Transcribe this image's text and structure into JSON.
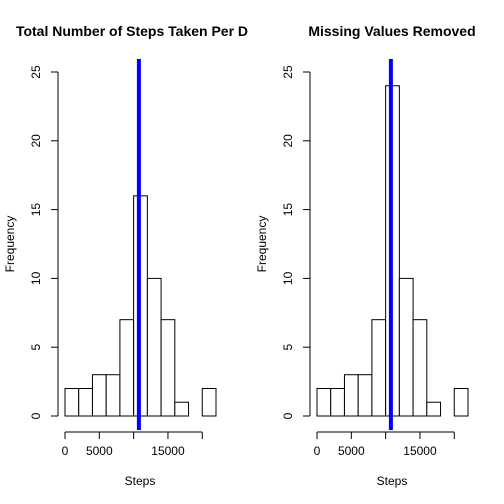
{
  "chart_data": [
    {
      "type": "bar",
      "title": "Total Number of Steps Taken Per D",
      "xlabel": "Steps",
      "ylabel": "Frequency",
      "bin_edges": [
        0,
        2000,
        4000,
        6000,
        8000,
        10000,
        12000,
        14000,
        16000,
        18000,
        20000,
        22000
      ],
      "values": [
        2,
        2,
        3,
        3,
        7,
        16,
        10,
        7,
        1,
        0,
        2
      ],
      "xlim": [
        0,
        22000
      ],
      "ylim": [
        0,
        25
      ],
      "x_ticks": [
        0,
        5000,
        15000
      ],
      "x_tick_marks": [
        0,
        5000,
        10000,
        15000,
        20000
      ],
      "y_ticks": [
        0,
        5,
        10,
        15,
        20,
        25
      ],
      "reference_line": {
        "x": 10766,
        "color": "#0000ff"
      },
      "bar_fill": "#ffffff",
      "bar_stroke": "#000000",
      "grid": false
    },
    {
      "type": "bar",
      "title": "Missing Values Removed",
      "xlabel": "Steps",
      "ylabel": "Frequency",
      "bin_edges": [
        0,
        2000,
        4000,
        6000,
        8000,
        10000,
        12000,
        14000,
        16000,
        18000,
        20000,
        22000
      ],
      "values": [
        2,
        2,
        3,
        3,
        7,
        24,
        10,
        7,
        1,
        0,
        2
      ],
      "xlim": [
        0,
        22000
      ],
      "ylim": [
        0,
        25
      ],
      "x_ticks": [
        0,
        5000,
        15000
      ],
      "x_tick_marks": [
        0,
        5000,
        10000,
        15000,
        20000
      ],
      "y_ticks": [
        0,
        5,
        10,
        15,
        20,
        25
      ],
      "reference_line": {
        "x": 10766,
        "color": "#0000ff"
      },
      "bar_fill": "#ffffff",
      "bar_stroke": "#000000",
      "grid": false
    }
  ]
}
